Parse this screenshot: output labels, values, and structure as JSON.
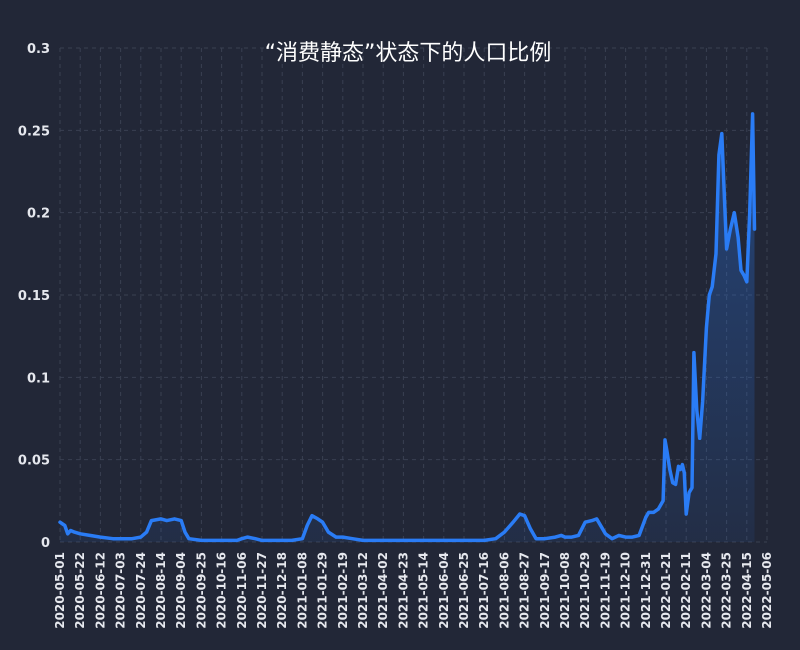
{
  "chart_data": {
    "type": "area",
    "title": "“消费静态”状态下的人口比例",
    "xlabel": "",
    "ylabel": "",
    "ylim": [
      0,
      0.3
    ],
    "yticks": [
      0,
      0.05,
      0.1,
      0.15,
      0.2,
      0.25,
      0.3
    ],
    "ytick_labels": [
      "0",
      "0.05",
      "0.1",
      "0.15",
      "0.2",
      "0.25",
      "0.3"
    ],
    "xlim": [
      "2020-05-01",
      "2022-05-06"
    ],
    "xtick_labels": [
      "2020-05-01",
      "2020-05-22",
      "2020-06-12",
      "2020-07-03",
      "2020-07-24",
      "2020-08-14",
      "2020-09-04",
      "2020-09-25",
      "2020-10-16",
      "2020-11-06",
      "2020-11-27",
      "2020-12-18",
      "2021-01-08",
      "2021-01-29",
      "2021-02-19",
      "2021-03-12",
      "2021-04-02",
      "2021-04-23",
      "2021-05-14",
      "2021-06-04",
      "2021-06-25",
      "2021-07-16",
      "2021-08-06",
      "2021-08-27",
      "2021-09-17",
      "2021-10-08",
      "2021-10-29",
      "2021-11-19",
      "2021-12-10",
      "2021-12-31",
      "2022-01-21",
      "2022-02-11",
      "2022-03-04",
      "2022-03-25",
      "2022-04-15",
      "2022-05-06"
    ],
    "grid": true,
    "line_color": "#2a7cf5",
    "background": "#222737",
    "series": [
      {
        "name": "",
        "points": [
          [
            "2020-05-01",
            0.012
          ],
          [
            "2020-05-06",
            0.01
          ],
          [
            "2020-05-09",
            0.005
          ],
          [
            "2020-05-12",
            0.007
          ],
          [
            "2020-05-16",
            0.006
          ],
          [
            "2020-05-22",
            0.005
          ],
          [
            "2020-06-01",
            0.004
          ],
          [
            "2020-06-12",
            0.003
          ],
          [
            "2020-06-25",
            0.002
          ],
          [
            "2020-07-03",
            0.002
          ],
          [
            "2020-07-15",
            0.002
          ],
          [
            "2020-07-24",
            0.003
          ],
          [
            "2020-07-30",
            0.006
          ],
          [
            "2020-08-04",
            0.013
          ],
          [
            "2020-08-14",
            0.014
          ],
          [
            "2020-08-20",
            0.013
          ],
          [
            "2020-08-28",
            0.014
          ],
          [
            "2020-09-04",
            0.013
          ],
          [
            "2020-09-08",
            0.006
          ],
          [
            "2020-09-12",
            0.002
          ],
          [
            "2020-09-25",
            0.001
          ],
          [
            "2020-10-16",
            0.001
          ],
          [
            "2020-11-01",
            0.001
          ],
          [
            "2020-11-06",
            0.002
          ],
          [
            "2020-11-12",
            0.003
          ],
          [
            "2020-11-20",
            0.002
          ],
          [
            "2020-11-27",
            0.001
          ],
          [
            "2020-12-18",
            0.001
          ],
          [
            "2020-12-28",
            0.001
          ],
          [
            "2021-01-08",
            0.002
          ],
          [
            "2021-01-13",
            0.01
          ],
          [
            "2021-01-18",
            0.016
          ],
          [
            "2021-01-24",
            0.014
          ],
          [
            "2021-01-29",
            0.012
          ],
          [
            "2021-02-04",
            0.006
          ],
          [
            "2021-02-12",
            0.003
          ],
          [
            "2021-02-19",
            0.003
          ],
          [
            "2021-03-01",
            0.002
          ],
          [
            "2021-03-12",
            0.001
          ],
          [
            "2021-04-02",
            0.001
          ],
          [
            "2021-04-23",
            0.001
          ],
          [
            "2021-05-14",
            0.001
          ],
          [
            "2021-06-04",
            0.001
          ],
          [
            "2021-06-25",
            0.001
          ],
          [
            "2021-07-16",
            0.001
          ],
          [
            "2021-07-28",
            0.002
          ],
          [
            "2021-08-06",
            0.006
          ],
          [
            "2021-08-15",
            0.012
          ],
          [
            "2021-08-22",
            0.017
          ],
          [
            "2021-08-27",
            0.016
          ],
          [
            "2021-09-02",
            0.008
          ],
          [
            "2021-09-08",
            0.002
          ],
          [
            "2021-09-17",
            0.002
          ],
          [
            "2021-09-28",
            0.003
          ],
          [
            "2021-10-04",
            0.004
          ],
          [
            "2021-10-08",
            0.003
          ],
          [
            "2021-10-15",
            0.003
          ],
          [
            "2021-10-22",
            0.004
          ],
          [
            "2021-10-29",
            0.012
          ],
          [
            "2021-11-05",
            0.013
          ],
          [
            "2021-11-10",
            0.014
          ],
          [
            "2021-11-15",
            0.009
          ],
          [
            "2021-11-19",
            0.005
          ],
          [
            "2021-11-26",
            0.002
          ],
          [
            "2021-12-03",
            0.004
          ],
          [
            "2021-12-10",
            0.003
          ],
          [
            "2021-12-17",
            0.003
          ],
          [
            "2021-12-24",
            0.004
          ],
          [
            "2021-12-31",
            0.015
          ],
          [
            "2022-01-03",
            0.018
          ],
          [
            "2022-01-08",
            0.018
          ],
          [
            "2022-01-13",
            0.02
          ],
          [
            "2022-01-18",
            0.025
          ],
          [
            "2022-01-20",
            0.062
          ],
          [
            "2022-01-22",
            0.055
          ],
          [
            "2022-01-25",
            0.044
          ],
          [
            "2022-01-28",
            0.036
          ],
          [
            "2022-01-31",
            0.035
          ],
          [
            "2022-02-03",
            0.046
          ],
          [
            "2022-02-05",
            0.044
          ],
          [
            "2022-02-07",
            0.047
          ],
          [
            "2022-02-09",
            0.042
          ],
          [
            "2022-02-11",
            0.017
          ],
          [
            "2022-02-14",
            0.03
          ],
          [
            "2022-02-17",
            0.033
          ],
          [
            "2022-02-19",
            0.115
          ],
          [
            "2022-02-22",
            0.08
          ],
          [
            "2022-02-25",
            0.063
          ],
          [
            "2022-02-28",
            0.085
          ],
          [
            "2022-03-04",
            0.13
          ],
          [
            "2022-03-07",
            0.15
          ],
          [
            "2022-03-10",
            0.155
          ],
          [
            "2022-03-14",
            0.175
          ],
          [
            "2022-03-17",
            0.235
          ],
          [
            "2022-03-20",
            0.248
          ],
          [
            "2022-03-23",
            0.205
          ],
          [
            "2022-03-25",
            0.178
          ],
          [
            "2022-03-29",
            0.19
          ],
          [
            "2022-04-02",
            0.2
          ],
          [
            "2022-04-06",
            0.185
          ],
          [
            "2022-04-09",
            0.165
          ],
          [
            "2022-04-12",
            0.162
          ],
          [
            "2022-04-15",
            0.158
          ],
          [
            "2022-04-18",
            0.2
          ],
          [
            "2022-04-21",
            0.26
          ],
          [
            "2022-04-23",
            0.19
          ]
        ]
      }
    ]
  }
}
